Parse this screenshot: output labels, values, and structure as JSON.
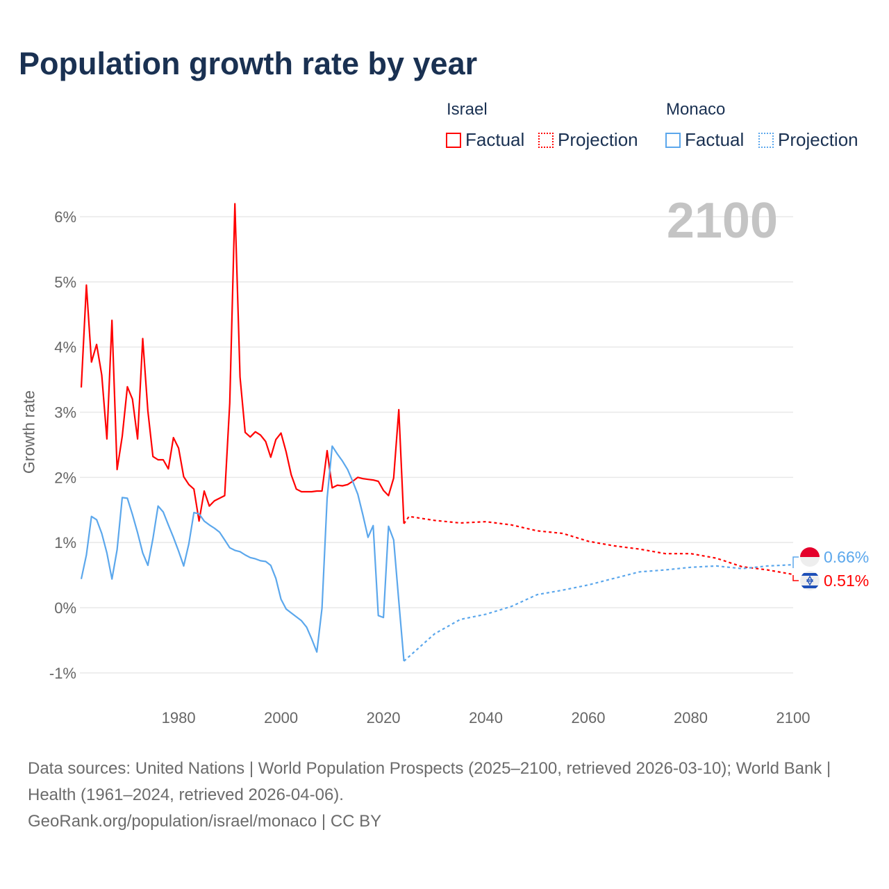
{
  "title": "Population growth rate by year",
  "legend": {
    "israel": "Israel",
    "monaco": "Monaco",
    "factual": "Factual",
    "projection": "Projection"
  },
  "year_label": "2100",
  "end_labels": {
    "monaco": "0.66%",
    "israel": "0.51%"
  },
  "footer": {
    "line1": "Data sources: United Nations | World Population Prospects (2025–2100, retrieved 2026-03-10); World Bank | Health (1961–2024, retrieved 2026-04-06).",
    "line2": "GeoRank.org/population/israel/monaco | CC BY"
  },
  "colors": {
    "israel": "#ff0000",
    "monaco": "#5ba7ec"
  },
  "chart_data": {
    "type": "line",
    "title": "Population growth rate by year",
    "xlabel": "",
    "ylabel": "Growth rate",
    "xlim": [
      1961,
      2100
    ],
    "ylim": [
      -1.1,
      6.3
    ],
    "xticks": [
      1980,
      2000,
      2020,
      2040,
      2060,
      2080,
      2100
    ],
    "yticks": [
      -1,
      0,
      1,
      2,
      3,
      4,
      5,
      6
    ],
    "ytick_labels": [
      "-1%",
      "0%",
      "1%",
      "2%",
      "3%",
      "4%",
      "5%",
      "6%"
    ],
    "series": [
      {
        "name": "Israel Factual",
        "country": "israel",
        "style": "solid",
        "x_start": 1961,
        "values": [
          3.38,
          4.95,
          3.77,
          4.04,
          3.57,
          2.59,
          4.41,
          2.12,
          2.63,
          3.39,
          3.2,
          2.59,
          4.13,
          3.02,
          2.32,
          2.27,
          2.27,
          2.13,
          2.61,
          2.45,
          2.01,
          1.89,
          1.82,
          1.33,
          1.79,
          1.56,
          1.64,
          1.68,
          1.72,
          3.14,
          6.2,
          3.54,
          2.69,
          2.62,
          2.7,
          2.65,
          2.55,
          2.31,
          2.58,
          2.68,
          2.39,
          2.04,
          1.82,
          1.78,
          1.78,
          1.78,
          1.79,
          1.79,
          2.41,
          1.84,
          1.88,
          1.87,
          1.89,
          1.94,
          2.0,
          1.98,
          1.97,
          1.96,
          1.94,
          1.8,
          1.72,
          1.99,
          3.04,
          1.29
        ]
      },
      {
        "name": "Monaco Factual",
        "country": "monaco",
        "style": "solid",
        "x_start": 1961,
        "values": [
          0.44,
          0.81,
          1.4,
          1.35,
          1.14,
          0.84,
          0.44,
          0.89,
          1.69,
          1.68,
          1.43,
          1.15,
          0.84,
          0.65,
          1.06,
          1.56,
          1.47,
          1.27,
          1.08,
          0.87,
          0.64,
          0.98,
          1.46,
          1.44,
          1.33,
          1.27,
          1.22,
          1.16,
          1.04,
          0.92,
          0.88,
          0.86,
          0.81,
          0.77,
          0.75,
          0.72,
          0.71,
          0.65,
          0.45,
          0.13,
          -0.02,
          -0.08,
          -0.14,
          -0.2,
          -0.3,
          -0.48,
          -0.68,
          -0.01,
          1.68,
          2.48,
          2.36,
          2.25,
          2.12,
          1.94,
          1.74,
          1.42,
          1.08,
          1.26,
          -0.12,
          -0.15,
          1.25,
          1.04,
          0.1,
          -0.82
        ]
      },
      {
        "name": "Israel Projection",
        "country": "israel",
        "style": "dotted",
        "x": [
          2024,
          2025,
          2030,
          2035,
          2040,
          2045,
          2050,
          2055,
          2060,
          2065,
          2070,
          2075,
          2080,
          2085,
          2090,
          2095,
          2100
        ],
        "values": [
          1.29,
          1.4,
          1.34,
          1.3,
          1.32,
          1.27,
          1.18,
          1.14,
          1.02,
          0.95,
          0.9,
          0.83,
          0.83,
          0.76,
          0.63,
          0.58,
          0.51
        ]
      },
      {
        "name": "Monaco Projection",
        "country": "monaco",
        "style": "dotted",
        "x": [
          2024,
          2025,
          2030,
          2035,
          2040,
          2045,
          2050,
          2055,
          2060,
          2065,
          2070,
          2075,
          2080,
          2085,
          2090,
          2095,
          2100
        ],
        "values": [
          -0.82,
          -0.75,
          -0.4,
          -0.18,
          -0.1,
          0.02,
          0.2,
          0.27,
          0.35,
          0.45,
          0.55,
          0.58,
          0.62,
          0.64,
          0.6,
          0.64,
          0.66
        ]
      }
    ]
  }
}
